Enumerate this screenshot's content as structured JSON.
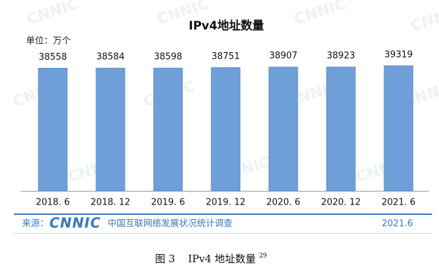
{
  "chart_data": {
    "type": "bar",
    "title": "IPv4地址数量",
    "unit_label": "单位：万个",
    "categories": [
      "2018. 6",
      "2018. 12",
      "2019. 6",
      "2019. 12",
      "2020. 6",
      "2020. 12",
      "2021. 6"
    ],
    "values": [
      38558,
      38584,
      38598,
      38751,
      38907,
      38923,
      39319
    ],
    "color": "#6f9fd8",
    "ylim": [
      0,
      41000
    ],
    "watermark": "CNNIC"
  },
  "footer": {
    "source_label": "来源：",
    "logo": "CNNIC",
    "source_name": "中国互联网络发展状况统计调查",
    "date": "2021.6"
  },
  "caption": {
    "figure": "图 3",
    "text": "IPv4 地址数量",
    "note": "29"
  }
}
